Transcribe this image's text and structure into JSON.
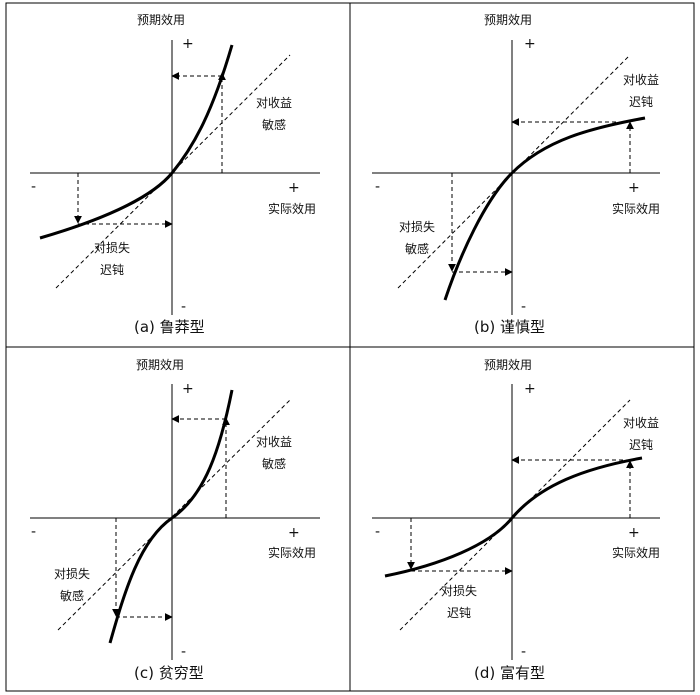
{
  "axis_labels": {
    "y": "预期效用",
    "x": "实际效用",
    "plus": "+",
    "minus": "-"
  },
  "panels": [
    {
      "id": "a",
      "caption": "(a)  鲁莽型",
      "gain_label": [
        "对收益",
        "敏感"
      ],
      "loss_label": [
        "对损失",
        "迟钝"
      ]
    },
    {
      "id": "b",
      "caption": "(b)  谨慎型",
      "gain_label": [
        "对收益",
        "迟钝"
      ],
      "loss_label": [
        "对损失",
        "敏感"
      ]
    },
    {
      "id": "c",
      "caption": "(c)  贫穷型",
      "gain_label": [
        "对收益",
        "敏感"
      ],
      "loss_label": [
        "对损失",
        "敏感"
      ]
    },
    {
      "id": "d",
      "caption": "(d)  富有型",
      "gain_label": [
        "对收益",
        "迟钝"
      ],
      "loss_label": [
        "对损失",
        "迟钝"
      ]
    }
  ]
}
